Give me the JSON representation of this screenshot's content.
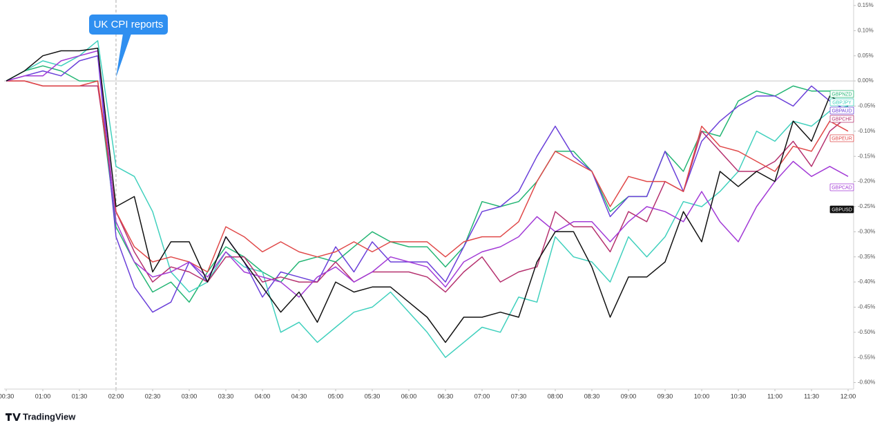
{
  "chart_data": {
    "type": "line",
    "annotation": {
      "text": "UK CPI reports",
      "x": 2
    },
    "source": "TradingView",
    "x": [
      0.5,
      0.75,
      1,
      1.25,
      1.5,
      1.75,
      2,
      2.25,
      2.5,
      2.75,
      3,
      3.25,
      3.5,
      3.75,
      4,
      4.25,
      4.5,
      4.75,
      5,
      5.25,
      5.5,
      5.75,
      6,
      6.25,
      6.5,
      6.75,
      7,
      7.25,
      7.5,
      7.75,
      8,
      8.25,
      8.5,
      8.75,
      9,
      9.25,
      9.5,
      9.75,
      10,
      10.25,
      10.5,
      10.75,
      11,
      11.25,
      11.5,
      11.75,
      12
    ],
    "xlim": [
      0.472,
      12.075
    ],
    "ylim": [
      -0.613,
      0.161
    ],
    "xticks": [
      {
        "value": 0.5,
        "label": "00:30"
      },
      {
        "value": 1,
        "label": "01:00"
      },
      {
        "value": 1.5,
        "label": "01:30"
      },
      {
        "value": 2,
        "label": "02:00"
      },
      {
        "value": 2.5,
        "label": "02:30"
      },
      {
        "value": 3,
        "label": "03:00"
      },
      {
        "value": 3.5,
        "label": "03:30"
      },
      {
        "value": 4,
        "label": "04:00"
      },
      {
        "value": 4.5,
        "label": "04:30"
      },
      {
        "value": 5,
        "label": "05:00"
      },
      {
        "value": 5.5,
        "label": "05:30"
      },
      {
        "value": 6,
        "label": "06:00"
      },
      {
        "value": 6.5,
        "label": "06:30"
      },
      {
        "value": 7,
        "label": "07:00"
      },
      {
        "value": 7.5,
        "label": "07:30"
      },
      {
        "value": 8,
        "label": "08:00"
      },
      {
        "value": 8.5,
        "label": "08:30"
      },
      {
        "value": 9,
        "label": "09:00"
      },
      {
        "value": 9.5,
        "label": "09:30"
      },
      {
        "value": 10,
        "label": "10:00"
      },
      {
        "value": 10.5,
        "label": "10:30"
      },
      {
        "value": 11,
        "label": "11:00"
      },
      {
        "value": 11.5,
        "label": "11:30"
      },
      {
        "value": 12,
        "label": "12:00"
      }
    ],
    "yticks": [
      {
        "value": 0.15,
        "label": "0.15%"
      },
      {
        "value": 0.1,
        "label": "0.10%"
      },
      {
        "value": 0.05,
        "label": "0.05%"
      },
      {
        "value": 0,
        "label": "0.00%"
      },
      {
        "value": -0.05,
        "label": "-0.05%"
      },
      {
        "value": -0.1,
        "label": "-0.10%"
      },
      {
        "value": -0.15,
        "label": "-0.15%"
      },
      {
        "value": -0.2,
        "label": "-0.20%"
      },
      {
        "value": -0.25,
        "label": "-0.25%"
      },
      {
        "value": -0.3,
        "label": "-0.30%"
      },
      {
        "value": -0.35,
        "label": "-0.35%"
      },
      {
        "value": -0.4,
        "label": "-0.40%"
      },
      {
        "value": -0.45,
        "label": "-0.45%"
      },
      {
        "value": -0.5,
        "label": "-0.50%"
      },
      {
        "value": -0.55,
        "label": "-0.55%"
      },
      {
        "value": -0.6,
        "label": "-0.60%"
      }
    ],
    "series": [
      {
        "name": "GBPNZD",
        "color": "#22b573",
        "values": [
          0,
          0.02,
          0.03,
          0.02,
          0,
          0,
          -0.29,
          -0.36,
          -0.42,
          -0.4,
          -0.44,
          -0.38,
          -0.33,
          -0.35,
          -0.38,
          -0.4,
          -0.36,
          -0.35,
          -0.36,
          -0.33,
          -0.3,
          -0.32,
          -0.33,
          -0.33,
          -0.37,
          -0.33,
          -0.24,
          -0.25,
          -0.24,
          -0.2,
          -0.14,
          -0.14,
          -0.18,
          -0.26,
          -0.23,
          -0.23,
          -0.14,
          -0.18,
          -0.1,
          -0.11,
          -0.04,
          -0.02,
          -0.03,
          -0.01,
          -0.02,
          -0.02,
          -0.02
        ]
      },
      {
        "name": "GBPJPY",
        "color": "#3fd0bd",
        "values": [
          0,
          0.02,
          0.04,
          0.03,
          0.05,
          0.08,
          -0.17,
          -0.19,
          -0.26,
          -0.38,
          -0.42,
          -0.4,
          -0.34,
          -0.37,
          -0.38,
          -0.5,
          -0.48,
          -0.52,
          -0.49,
          -0.46,
          -0.45,
          -0.42,
          -0.46,
          -0.5,
          -0.55,
          -0.52,
          -0.49,
          -0.5,
          -0.43,
          -0.44,
          -0.31,
          -0.35,
          -0.36,
          -0.4,
          -0.31,
          -0.35,
          -0.31,
          -0.24,
          -0.25,
          -0.22,
          -0.18,
          -0.1,
          -0.12,
          -0.08,
          -0.09,
          -0.06,
          -0.05
        ]
      },
      {
        "name": "GBPAUD",
        "color": "#6a3fd9",
        "values": [
          0,
          0.01,
          0.02,
          0.01,
          0.04,
          0.05,
          -0.31,
          -0.41,
          -0.46,
          -0.44,
          -0.36,
          -0.4,
          -0.31,
          -0.36,
          -0.43,
          -0.38,
          -0.39,
          -0.4,
          -0.33,
          -0.38,
          -0.32,
          -0.36,
          -0.36,
          -0.36,
          -0.4,
          -0.33,
          -0.26,
          -0.25,
          -0.22,
          -0.15,
          -0.09,
          -0.15,
          -0.18,
          -0.27,
          -0.23,
          -0.23,
          -0.14,
          -0.22,
          -0.12,
          -0.08,
          -0.05,
          -0.03,
          -0.03,
          -0.05,
          -0.01,
          -0.04,
          -0.06
        ]
      },
      {
        "name": "GBPCHF",
        "color": "#b5306e",
        "values": [
          0,
          0,
          -0.01,
          -0.01,
          -0.01,
          -0.01,
          -0.26,
          -0.34,
          -0.4,
          -0.37,
          -0.38,
          -0.4,
          -0.35,
          -0.35,
          -0.4,
          -0.39,
          -0.4,
          -0.4,
          -0.36,
          -0.4,
          -0.38,
          -0.38,
          -0.38,
          -0.39,
          -0.42,
          -0.38,
          -0.35,
          -0.4,
          -0.38,
          -0.37,
          -0.26,
          -0.29,
          -0.29,
          -0.34,
          -0.26,
          -0.28,
          -0.2,
          -0.22,
          -0.1,
          -0.14,
          -0.18,
          -0.18,
          -0.16,
          -0.12,
          -0.17,
          -0.1,
          -0.07
        ]
      },
      {
        "name": "GBPEUR",
        "color": "#e04848",
        "values": [
          0,
          0,
          -0.01,
          -0.01,
          -0.01,
          0,
          -0.26,
          -0.33,
          -0.36,
          -0.35,
          -0.36,
          -0.38,
          -0.29,
          -0.31,
          -0.34,
          -0.32,
          -0.34,
          -0.35,
          -0.34,
          -0.32,
          -0.34,
          -0.32,
          -0.32,
          -0.32,
          -0.35,
          -0.32,
          -0.31,
          -0.31,
          -0.28,
          -0.2,
          -0.14,
          -0.16,
          -0.18,
          -0.25,
          -0.19,
          -0.2,
          -0.2,
          -0.22,
          -0.09,
          -0.13,
          -0.14,
          -0.16,
          -0.18,
          -0.13,
          -0.14,
          -0.08,
          -0.1
        ]
      },
      {
        "name": "GBPCAD",
        "color": "#a23ad6",
        "values": [
          0,
          0.01,
          0.01,
          0.04,
          0.05,
          0.06,
          -0.28,
          -0.36,
          -0.39,
          -0.38,
          -0.36,
          -0.39,
          -0.34,
          -0.38,
          -0.39,
          -0.4,
          -0.43,
          -0.39,
          -0.37,
          -0.4,
          -0.38,
          -0.35,
          -0.36,
          -0.37,
          -0.41,
          -0.36,
          -0.34,
          -0.33,
          -0.31,
          -0.27,
          -0.3,
          -0.28,
          -0.28,
          -0.32,
          -0.28,
          -0.25,
          -0.26,
          -0.28,
          -0.22,
          -0.28,
          -0.32,
          -0.25,
          -0.2,
          -0.16,
          -0.19,
          -0.17,
          -0.19
        ]
      },
      {
        "name": "GBPUSD",
        "color": "#111111",
        "values": [
          0,
          0.02,
          0.05,
          0.06,
          0.06,
          0.065,
          -0.25,
          -0.23,
          -0.38,
          -0.32,
          -0.32,
          -0.4,
          -0.31,
          -0.36,
          -0.41,
          -0.46,
          -0.42,
          -0.48,
          -0.4,
          -0.42,
          -0.41,
          -0.41,
          -0.44,
          -0.47,
          -0.52,
          -0.47,
          -0.47,
          -0.46,
          -0.47,
          -0.36,
          -0.3,
          -0.3,
          -0.37,
          -0.47,
          -0.39,
          -0.39,
          -0.36,
          -0.26,
          -0.32,
          -0.18,
          -0.21,
          -0.18,
          -0.2,
          -0.08,
          -0.12,
          -0.03,
          -0.05
        ]
      }
    ]
  }
}
